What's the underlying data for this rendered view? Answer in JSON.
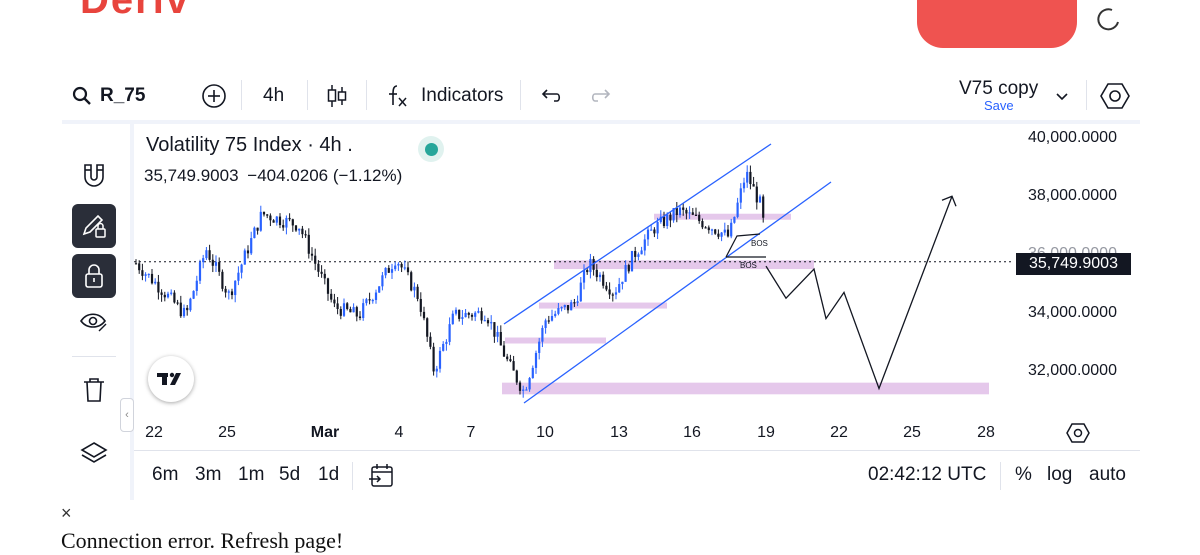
{
  "header": {
    "brand": "Deriv"
  },
  "toolbar": {
    "symbol": "R_75",
    "interval": "4h",
    "indicators_label": "Indicators",
    "layout_name": "V75 copy",
    "save_label": "Save"
  },
  "legend": {
    "title": "Volatility 75 Index · 4h .",
    "last": "35,749.9003",
    "change": "−404.0206 (−1.12%)",
    "status_color": "#26a69a"
  },
  "chart_data": {
    "type": "candlestick",
    "symbol": "Volatility 75 Index",
    "interval": "4h",
    "current_price": 35749.9003,
    "price_axis_labels": [
      "40,000.0000",
      "38,000.0000",
      "35,749.9003",
      "34,000.0000",
      "32,000.0000"
    ],
    "price_axis_levels": [
      40000,
      38000,
      34000,
      32000
    ],
    "time_axis_labels": [
      "22",
      "25",
      "Mar",
      "4",
      "7",
      "10",
      "13",
      "16",
      "19",
      "22",
      "25",
      "28"
    ],
    "ylim": [
      30700,
      40400
    ],
    "annotations": [
      "BOS",
      "BOS"
    ],
    "zones": [
      {
        "from": 31200,
        "to": 31600
      },
      {
        "from": 35500,
        "to": 35800
      },
      {
        "from": 37200,
        "to": 37400
      },
      {
        "from": 34200,
        "to": 34350
      },
      {
        "from": 33000,
        "to": 33150
      }
    ],
    "projection_path": [
      35600,
      34500,
      35500,
      33800,
      34700,
      31400,
      38000
    ],
    "colors": {
      "up": "#2962ff",
      "down": "#131722",
      "zone": "#e1bee7",
      "channel": "#2962ff"
    }
  },
  "bottom": {
    "ranges": [
      "6m",
      "3m",
      "1m",
      "5d",
      "1d"
    ],
    "time": "02:42:12 UTC",
    "percent": "%",
    "log": "log",
    "auto": "auto"
  },
  "error": {
    "close": "×",
    "message": "Connection error. Refresh page!"
  }
}
